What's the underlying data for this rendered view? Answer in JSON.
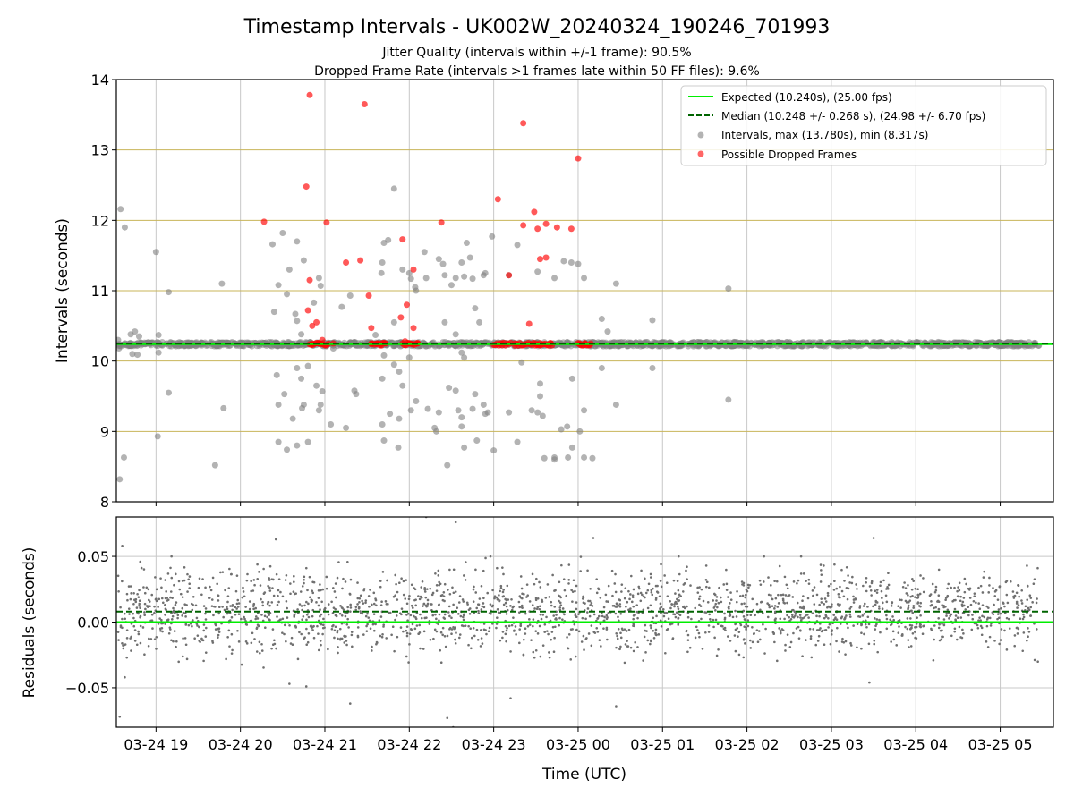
{
  "title": "Timestamp Intervals - UK002W_20240324_190246_701993",
  "subtitle_1": "Jitter Quality (intervals within +/-1 frame): 90.5%",
  "subtitle_2": "Dropped Frame Rate (intervals >1 frames late within 50 FF files): 9.6%",
  "colors": {
    "expected": "#00ee00",
    "median": "#006400",
    "intervals": "#808080",
    "dropped": "#ff0000",
    "hgrid": "#c8b45a",
    "vgrid": "#c8c8c8"
  },
  "chart_data": [
    {
      "type": "scatter",
      "panel": "top",
      "ylabel": "Intervals (seconds)",
      "ylim": [
        8,
        14
      ],
      "yticks": [
        8,
        9,
        10,
        11,
        12,
        13,
        14
      ],
      "ytick_labels": [
        "8",
        "9",
        "10",
        "11",
        "12",
        "13",
        "14"
      ],
      "xlim_hours": [
        18.53,
        29.63
      ],
      "legend_position": "top-right",
      "legend": [
        "Expected (10.240s), (25.00 fps)",
        "Median (10.248 +/- 0.268 s), (24.98 +/- 6.70 fps)",
        "Intervals, max (13.780s), min (8.317s)",
        "Possible Dropped Frames"
      ],
      "expected_line": 10.24,
      "median_line": 10.248,
      "grid": true,
      "baseline_band": {
        "from_hour": 18.54,
        "to_hour": 29.46,
        "value_min": 10.21,
        "value_max": 10.27
      },
      "intervals_scatter": [
        [
          18.55,
          10.3
        ],
        [
          18.56,
          10.18
        ],
        [
          18.57,
          8.32
        ],
        [
          18.58,
          12.16
        ],
        [
          18.62,
          8.63
        ],
        [
          18.63,
          11.9
        ],
        [
          18.7,
          10.38
        ],
        [
          18.72,
          10.1
        ],
        [
          18.75,
          10.42
        ],
        [
          18.78,
          10.09
        ],
        [
          18.8,
          10.35
        ],
        [
          19.0,
          11.55
        ],
        [
          19.02,
          8.93
        ],
        [
          19.03,
          10.37
        ],
        [
          19.03,
          10.12
        ],
        [
          19.15,
          10.98
        ],
        [
          19.15,
          9.55
        ],
        [
          19.7,
          8.52
        ],
        [
          19.78,
          11.1
        ],
        [
          19.8,
          9.33
        ],
        [
          20.38,
          11.66
        ],
        [
          20.4,
          10.7
        ],
        [
          20.43,
          9.8
        ],
        [
          20.45,
          11.08
        ],
        [
          20.45,
          9.38
        ],
        [
          20.45,
          8.85
        ],
        [
          20.5,
          11.82
        ],
        [
          20.52,
          9.53
        ],
        [
          20.55,
          10.95
        ],
        [
          20.55,
          8.74
        ],
        [
          20.58,
          11.3
        ],
        [
          20.62,
          9.18
        ],
        [
          20.65,
          10.67
        ],
        [
          20.67,
          11.7
        ],
        [
          20.67,
          10.57
        ],
        [
          20.67,
          9.9
        ],
        [
          20.67,
          8.8
        ],
        [
          20.72,
          10.38
        ],
        [
          20.72,
          9.75
        ],
        [
          20.73,
          9.33
        ],
        [
          20.75,
          11.43
        ],
        [
          20.75,
          9.38
        ],
        [
          20.8,
          8.85
        ],
        [
          20.8,
          9.93
        ],
        [
          20.87,
          10.83
        ],
        [
          20.9,
          9.65
        ],
        [
          20.93,
          11.18
        ],
        [
          20.93,
          9.3
        ],
        [
          20.95,
          11.07
        ],
        [
          20.95,
          9.38
        ],
        [
          20.97,
          10.22
        ],
        [
          20.97,
          9.57
        ],
        [
          21.07,
          9.1
        ],
        [
          21.1,
          10.18
        ],
        [
          21.2,
          10.77
        ],
        [
          21.25,
          9.05
        ],
        [
          21.3,
          10.93
        ],
        [
          21.35,
          9.58
        ],
        [
          21.37,
          9.53
        ],
        [
          21.6,
          10.37
        ],
        [
          21.67,
          11.25
        ],
        [
          21.68,
          11.4
        ],
        [
          21.68,
          9.75
        ],
        [
          21.68,
          9.1
        ],
        [
          21.7,
          11.68
        ],
        [
          21.7,
          10.08
        ],
        [
          21.7,
          8.87
        ],
        [
          21.75,
          11.72
        ],
        [
          21.77,
          9.25
        ],
        [
          21.82,
          12.45
        ],
        [
          21.82,
          10.55
        ],
        [
          21.82,
          9.95
        ],
        [
          21.87,
          8.77
        ],
        [
          21.88,
          9.18
        ],
        [
          21.88,
          9.85
        ],
        [
          21.92,
          11.3
        ],
        [
          21.92,
          9.65
        ],
        [
          22.0,
          11.25
        ],
        [
          22.0,
          10.05
        ],
        [
          22.02,
          11.17
        ],
        [
          22.02,
          9.3
        ],
        [
          22.07,
          11.05
        ],
        [
          22.08,
          11.0
        ],
        [
          22.08,
          9.43
        ],
        [
          22.18,
          11.55
        ],
        [
          22.2,
          11.18
        ],
        [
          22.22,
          9.32
        ],
        [
          22.3,
          9.05
        ],
        [
          22.32,
          9.0
        ],
        [
          22.35,
          11.45
        ],
        [
          22.35,
          9.27
        ],
        [
          22.4,
          11.38
        ],
        [
          22.42,
          11.22
        ],
        [
          22.42,
          10.55
        ],
        [
          22.45,
          8.52
        ],
        [
          22.47,
          9.62
        ],
        [
          22.5,
          11.08
        ],
        [
          22.55,
          11.18
        ],
        [
          22.55,
          10.38
        ],
        [
          22.55,
          9.58
        ],
        [
          22.58,
          9.3
        ],
        [
          22.62,
          11.4
        ],
        [
          22.62,
          10.12
        ],
        [
          22.62,
          9.2
        ],
        [
          22.62,
          9.07
        ],
        [
          22.65,
          11.2
        ],
        [
          22.65,
          10.05
        ],
        [
          22.65,
          8.77
        ],
        [
          22.68,
          11.68
        ],
        [
          22.72,
          11.47
        ],
        [
          22.75,
          11.17
        ],
        [
          22.75,
          9.32
        ],
        [
          22.78,
          10.75
        ],
        [
          22.78,
          9.53
        ],
        [
          22.8,
          8.87
        ],
        [
          22.83,
          10.55
        ],
        [
          22.88,
          11.22
        ],
        [
          22.88,
          9.38
        ],
        [
          22.9,
          11.25
        ],
        [
          22.9,
          9.25
        ],
        [
          22.93,
          9.27
        ],
        [
          22.98,
          11.77
        ],
        [
          23.0,
          8.73
        ],
        [
          23.18,
          11.22
        ],
        [
          23.18,
          9.27
        ],
        [
          23.28,
          11.65
        ],
        [
          23.28,
          8.85
        ],
        [
          23.33,
          9.98
        ],
        [
          23.45,
          9.3
        ],
        [
          23.52,
          11.27
        ],
        [
          23.52,
          9.27
        ],
        [
          23.55,
          9.68
        ],
        [
          23.55,
          9.5
        ],
        [
          23.58,
          9.22
        ],
        [
          23.6,
          8.62
        ],
        [
          23.72,
          11.18
        ],
        [
          23.72,
          8.63
        ],
        [
          23.72,
          8.6
        ],
        [
          23.8,
          9.03
        ],
        [
          23.83,
          11.42
        ],
        [
          23.87,
          9.07
        ],
        [
          23.88,
          8.63
        ],
        [
          23.92,
          11.4
        ],
        [
          23.93,
          9.75
        ],
        [
          23.93,
          8.77
        ],
        [
          24.0,
          11.38
        ],
        [
          24.02,
          9.0
        ],
        [
          24.07,
          11.18
        ],
        [
          24.07,
          9.3
        ],
        [
          24.07,
          8.63
        ],
        [
          24.17,
          8.62
        ],
        [
          24.28,
          10.6
        ],
        [
          24.28,
          9.9
        ],
        [
          24.35,
          10.42
        ],
        [
          24.45,
          11.1
        ],
        [
          24.45,
          9.38
        ],
        [
          24.88,
          10.58
        ],
        [
          24.88,
          9.9
        ],
        [
          25.78,
          11.03
        ],
        [
          25.78,
          9.45
        ]
      ],
      "dropped_scatter": [
        [
          20.82,
          13.78
        ],
        [
          20.78,
          12.48
        ],
        [
          20.8,
          10.72
        ],
        [
          20.82,
          11.15
        ],
        [
          20.85,
          10.5
        ],
        [
          20.85,
          10.25
        ],
        [
          20.9,
          10.55
        ],
        [
          20.93,
          10.25
        ],
        [
          20.97,
          10.3
        ],
        [
          21.02,
          11.97
        ],
        [
          21.1,
          10.25
        ],
        [
          21.25,
          11.4
        ],
        [
          21.42,
          11.43
        ],
        [
          21.47,
          13.65
        ],
        [
          21.52,
          10.93
        ],
        [
          21.55,
          10.47
        ],
        [
          21.55,
          10.25
        ],
        [
          21.62,
          10.25
        ],
        [
          21.67,
          10.25
        ],
        [
          21.72,
          10.25
        ],
        [
          21.9,
          10.62
        ],
        [
          21.92,
          11.73
        ],
        [
          21.95,
          10.28
        ],
        [
          21.97,
          10.8
        ],
        [
          22.0,
          10.25
        ],
        [
          22.05,
          11.3
        ],
        [
          22.05,
          10.47
        ],
        [
          22.1,
          10.25
        ],
        [
          22.38,
          11.97
        ],
        [
          23.05,
          12.3
        ],
        [
          23.1,
          10.25
        ],
        [
          23.18,
          11.22
        ],
        [
          23.25,
          10.25
        ],
        [
          23.35,
          13.38
        ],
        [
          23.35,
          11.93
        ],
        [
          23.42,
          10.53
        ],
        [
          23.48,
          12.12
        ],
        [
          23.5,
          10.25
        ],
        [
          23.52,
          11.88
        ],
        [
          23.55,
          11.45
        ],
        [
          23.62,
          11.95
        ],
        [
          23.62,
          11.47
        ],
        [
          23.68,
          10.25
        ],
        [
          23.75,
          11.9
        ],
        [
          23.92,
          11.88
        ],
        [
          24.0,
          12.88
        ],
        [
          24.02,
          10.25
        ],
        [
          24.08,
          10.25
        ],
        [
          24.15,
          10.25
        ],
        [
          20.28,
          11.98
        ]
      ],
      "dropped_clusters": [
        [
          20.82,
          21.05
        ],
        [
          21.55,
          21.72
        ],
        [
          21.92,
          22.1
        ],
        [
          23.0,
          23.2
        ],
        [
          23.25,
          23.55
        ],
        [
          23.55,
          23.7
        ],
        [
          24.0,
          24.15
        ]
      ]
    },
    {
      "type": "scatter",
      "panel": "bottom",
      "xlabel": "Time (UTC)",
      "ylabel": "Residuals (seconds)",
      "ylim": [
        -0.08,
        0.08
      ],
      "yticks": [
        -0.05,
        0.0,
        0.05
      ],
      "ytick_labels": [
        "−0.05",
        "0.00",
        "0.05"
      ],
      "xticks_hours": [
        19,
        20,
        21,
        22,
        23,
        24,
        25,
        26,
        27,
        28,
        29
      ],
      "xtick_labels": [
        "03-24 19",
        "03-24 20",
        "03-24 21",
        "03-24 22",
        "03-24 23",
        "03-25 00",
        "03-25 01",
        "03-25 02",
        "03-25 03",
        "03-25 04",
        "03-25 05"
      ],
      "expected_line": 0.0,
      "median_line": 0.008,
      "residual_distribution": {
        "from_hour": 18.55,
        "to_hour": 29.45,
        "count": 2200,
        "center": 0.008,
        "spread": 0.022
      },
      "residual_outliers": [
        [
          18.57,
          -0.072
        ],
        [
          18.6,
          0.058
        ],
        [
          18.63,
          -0.042
        ],
        [
          20.42,
          0.063
        ],
        [
          20.58,
          -0.047
        ],
        [
          20.78,
          -0.049
        ],
        [
          21.3,
          -0.062
        ],
        [
          22.1,
          0.082
        ],
        [
          22.2,
          0.08
        ],
        [
          22.45,
          -0.073
        ],
        [
          22.52,
          -0.08
        ],
        [
          22.55,
          0.076
        ],
        [
          23.2,
          -0.058
        ],
        [
          24.18,
          0.064
        ],
        [
          24.45,
          -0.064
        ],
        [
          27.5,
          0.064
        ],
        [
          27.45,
          -0.046
        ]
      ]
    }
  ]
}
